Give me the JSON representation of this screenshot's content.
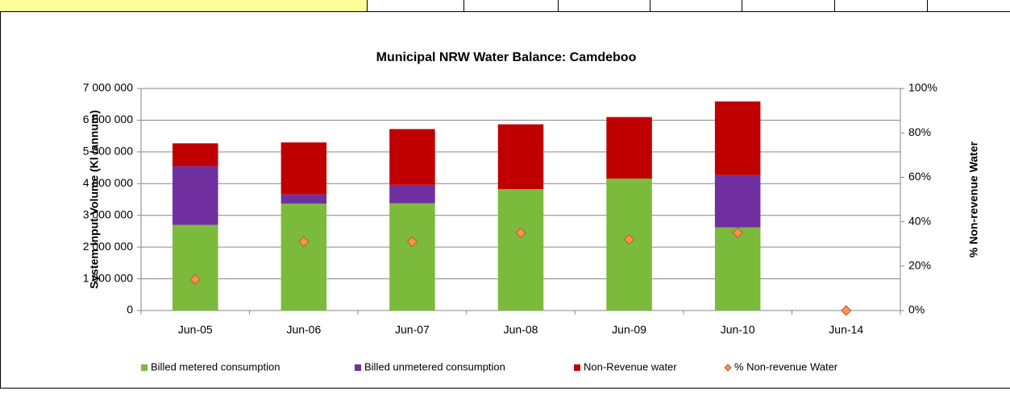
{
  "chart_data": {
    "type": "bar",
    "stacked": true,
    "title": "Municipal NRW Water Balance:  Camdeboo",
    "y_label": "System Input Volume (Kl /annum)",
    "y2_label": "% Non-revenue Water",
    "categories": [
      "Jun-05",
      "Jun-06",
      "Jun-07",
      "Jun-08",
      "Jun-09",
      "Jun-10",
      "Jun-14"
    ],
    "series": [
      {
        "name": "Billed metered consumption",
        "color": "#7cba3b",
        "values": [
          2700000,
          3370000,
          3380000,
          3830000,
          4160000,
          2620000,
          0
        ]
      },
      {
        "name": "Billed unmetered consumption",
        "color": "#7030a0",
        "values": [
          1850000,
          290000,
          580000,
          0,
          0,
          1650000,
          0
        ]
      },
      {
        "name": "Non-Revenue water",
        "color": "#c00000",
        "values": [
          720000,
          1640000,
          1760000,
          2040000,
          1940000,
          2320000,
          0
        ]
      },
      {
        "name": "% Non-revenue Water",
        "color": "#f79646",
        "axis": "y2",
        "marker": "diamond",
        "values": [
          14,
          31,
          31,
          35,
          32,
          35,
          0
        ]
      }
    ],
    "ylim": [
      0,
      7000000
    ],
    "yticks": [
      {
        "value": 0,
        "label": "0"
      },
      {
        "value": 1000000,
        "label": "1 000 000"
      },
      {
        "value": 2000000,
        "label": "2 000 000"
      },
      {
        "value": 3000000,
        "label": "3 000 000"
      },
      {
        "value": 4000000,
        "label": "4 000 000"
      },
      {
        "value": 5000000,
        "label": "5 000 000"
      },
      {
        "value": 6000000,
        "label": "6 000 000"
      },
      {
        "value": 7000000,
        "label": "7 000 000"
      }
    ],
    "y2lim": [
      0,
      100
    ],
    "y2ticks": [
      {
        "value": 0,
        "label": "0%"
      },
      {
        "value": 20,
        "label": "20%"
      },
      {
        "value": 40,
        "label": "40%"
      },
      {
        "value": 60,
        "label": "60%"
      },
      {
        "value": 80,
        "label": "80%"
      },
      {
        "value": 100,
        "label": "100%"
      }
    ],
    "grid": true,
    "legend": "bottom"
  }
}
